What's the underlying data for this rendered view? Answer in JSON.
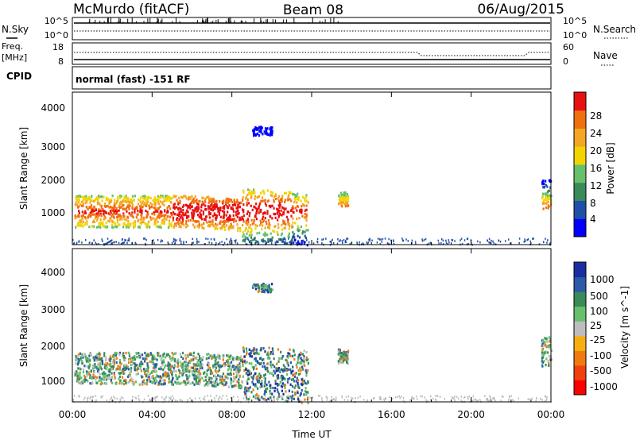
{
  "header": {
    "station": "McMurdo (fitACF)",
    "beam": "Beam 08",
    "date": "06/Aug/2015"
  },
  "status_panel": {
    "nsky_label": "N.Sky",
    "nsky_ticks": [
      "10^5",
      "10^0"
    ],
    "nsearch_label": "N.Search",
    "nsearch_ticks": [
      "10^5",
      "10^0"
    ],
    "freq_label": "Freq.",
    "freq_unit": "[MHz]",
    "freq_ticks": [
      "18",
      "8"
    ],
    "nave_label": "Nave",
    "nave_ticks": [
      "60",
      "0"
    ],
    "cpid_label": "CPID",
    "cpid_text": "normal (fast) -151 RF"
  },
  "time_axis": {
    "title": "Time UT",
    "tick_labels": [
      "00:00",
      "04:00",
      "08:00",
      "12:00",
      "16:00",
      "20:00",
      "00:00"
    ]
  },
  "colors": {
    "power_scale": [
      "#0000ff",
      "#1f4fa8",
      "#3a8a5a",
      "#66c06c",
      "#f2d400",
      "#f5a623",
      "#f07010",
      "#e81010"
    ],
    "velocity_scale": [
      "#ff0000",
      "#f04010",
      "#f07a10",
      "#f5b010",
      "#bdbdbd",
      "#66c06c",
      "#3a8a5a",
      "#2a5aa8",
      "#1a2ea0"
    ]
  },
  "chart_data": [
    {
      "type": "heatmap",
      "name": "power",
      "xlabel": "Time UT",
      "ylabel": "Slant Range [km]",
      "xlim": [
        0,
        24
      ],
      "ylim": [
        180,
        4500
      ],
      "y_ticks": [
        "1000",
        "2000",
        "3000",
        "4000"
      ],
      "colorbar": {
        "label": "Power [dB]",
        "tick_labels": [
          "28",
          "24",
          "20",
          "16",
          "12",
          "8",
          "4"
        ],
        "range": [
          0,
          32
        ]
      }
    },
    {
      "type": "heatmap",
      "name": "velocity",
      "xlabel": "Time UT",
      "ylabel": "Slant Range [km]",
      "xlim": [
        0,
        24
      ],
      "ylim": [
        180,
        4500
      ],
      "y_ticks": [
        "1000",
        "2000",
        "3000",
        "4000"
      ],
      "colorbar": {
        "label": "Velocity [m s^-1]",
        "tick_labels": [
          "1000",
          "500",
          "100",
          "25",
          "-25",
          "-100",
          "-500",
          "-1000"
        ]
      }
    }
  ]
}
